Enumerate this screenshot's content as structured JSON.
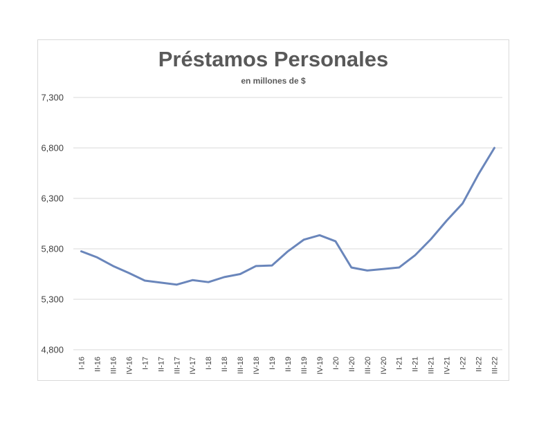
{
  "chart_data": {
    "type": "line",
    "title": "Préstamos Personales",
    "subtitle": "en millones de $",
    "xlabel": "",
    "ylabel": "",
    "ylim": [
      4800,
      7300
    ],
    "yticks": [
      4800,
      5300,
      5800,
      6300,
      6800,
      7300
    ],
    "ytick_labels": [
      "4,800",
      "5,300",
      "5,800",
      "6,300",
      "6,800",
      "7,300"
    ],
    "grid": true,
    "legend": "none",
    "categories": [
      "I-16",
      "II-16",
      "III-16",
      "IV-16",
      "I-17",
      "II-17",
      "III-17",
      "IV-17",
      "I-18",
      "II-18",
      "III-18",
      "IV-18",
      "I-19",
      "II-19",
      "III-19",
      "IV-19",
      "I-20",
      "II-20",
      "III-20",
      "IV-20",
      "I-21",
      "II-21",
      "III-21",
      "IV-21",
      "I-22",
      "II-22",
      "III-22"
    ],
    "series": [
      {
        "color": "#6a86bb",
        "values": [
          5775,
          5715,
          5630,
          5560,
          5485,
          5465,
          5445,
          5490,
          5470,
          5520,
          5550,
          5630,
          5635,
          5775,
          5890,
          5935,
          5875,
          5615,
          5585,
          5600,
          5615,
          5735,
          5895,
          6080,
          6250,
          6540,
          6800
        ]
      }
    ]
  },
  "colors": {
    "line": "#6a86bb",
    "grid": "#d9d9d9",
    "text": "#595959",
    "tick_text": "#404040"
  }
}
